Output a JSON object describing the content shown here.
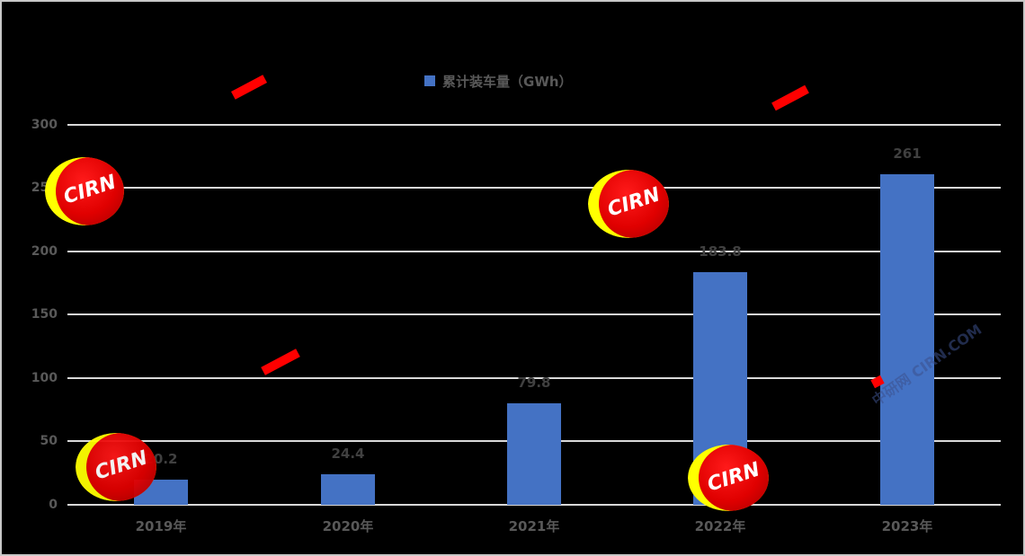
{
  "chart_data": {
    "type": "bar",
    "title": "",
    "legend": {
      "position": "top",
      "entries": [
        "累计装车量（GWh）"
      ]
    },
    "categories": [
      "2019年",
      "2020年",
      "2021年",
      "2022年",
      "2023年"
    ],
    "series": [
      {
        "name": "累计装车量（GWh）",
        "values": [
          20.2,
          24.4,
          79.8,
          183.8,
          261
        ],
        "color": "#4472c4"
      }
    ],
    "data_labels": [
      "20.2",
      "24.4",
      "79.8",
      "183.8",
      "261"
    ],
    "xlabel": "",
    "ylabel": "",
    "ylim": [
      0,
      300
    ],
    "yticks": [
      "0",
      "50",
      "100",
      "150",
      "200",
      "250",
      "300"
    ],
    "grid": true,
    "background": "#000000"
  },
  "legend_label": "累计装车量（GWh）",
  "watermarks": {
    "badge_text": "CIRN",
    "faint_text": "中研网 CIRN.COM"
  }
}
